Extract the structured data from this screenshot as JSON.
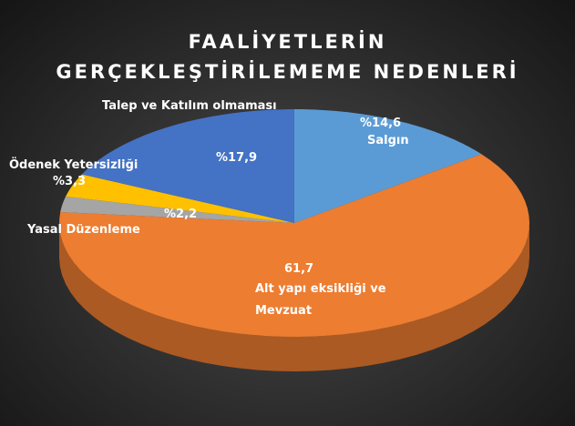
{
  "chart_data": {
    "type": "pie3d",
    "title": "FAALİYETLERİN GERÇEKLEŞTİRİLEMEME NEDENLERİ",
    "categories": [
      "Salgın",
      "Alt yapı eksikliği ve Mevzuat",
      "Yasal Düzenleme",
      "Ödenek Yetersizliği",
      "Talep ve Katılım olmaması"
    ],
    "values": [
      14.6,
      61.7,
      2.2,
      3.3,
      17.9
    ],
    "value_labels": [
      "%14,6",
      "61,7",
      "%2,2",
      "%3,3",
      "%17,9"
    ],
    "colors": [
      "#5b9bd5",
      "#ed7d31",
      "#a5a5a5",
      "#ffc000",
      "#4472c4"
    ]
  }
}
